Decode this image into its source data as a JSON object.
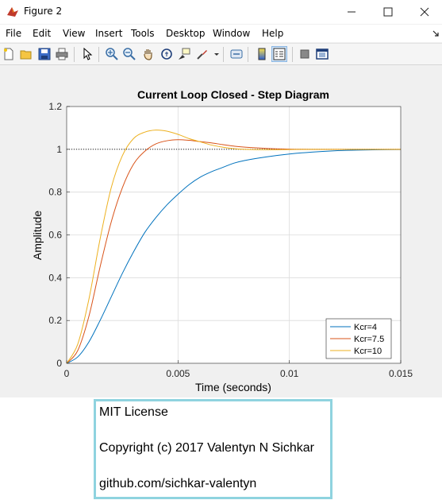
{
  "window": {
    "title": "Figure 2",
    "icon": "matlab-figure-icon",
    "controls": [
      "minimize-icon",
      "maximize-icon",
      "close-icon"
    ]
  },
  "menu": {
    "items": [
      "File",
      "Edit",
      "View",
      "Insert",
      "Tools",
      "Desktop",
      "Window",
      "Help"
    ]
  },
  "toolbar": {
    "buttons": [
      "new-figure-icon",
      "open-file-icon",
      "save-icon",
      "print-icon",
      "edit-plot-arrow-icon",
      "zoom-in-icon",
      "zoom-out-icon",
      "pan-hand-icon",
      "rotate-3d-icon",
      "data-cursor-icon",
      "brush-icon",
      "link-plot-icon",
      "insert-colorbar-icon",
      "insert-legend-icon",
      "hide-plot-tools-icon",
      "show-plot-tools-icon"
    ]
  },
  "chart_data": {
    "type": "line",
    "title": "Current Loop Closed - Step Diagram",
    "xlabel": "Time (seconds)",
    "ylabel": "Amplitude",
    "xlim": [
      0,
      0.015
    ],
    "ylim": [
      0,
      1.2
    ],
    "xticks": [
      "0",
      "0.005",
      "0.01",
      "0.015"
    ],
    "yticks": [
      "0",
      "0.2",
      "0.4",
      "0.6",
      "0.8",
      "1",
      "1.2"
    ],
    "grid": true,
    "reference_line": 1,
    "legend_position": "bottom-right",
    "x": [
      0,
      0.0005,
      0.001,
      0.0015,
      0.002,
      0.0025,
      0.003,
      0.0035,
      0.004,
      0.0045,
      0.005,
      0.0055,
      0.006,
      0.0065,
      0.007,
      0.0075,
      0.008,
      0.009,
      0.01,
      0.011,
      0.012,
      0.013,
      0.014,
      0.015
    ],
    "series": [
      {
        "name": "Kcr=4",
        "color": "#0072bd",
        "values": [
          0,
          0.03,
          0.1,
          0.2,
          0.31,
          0.42,
          0.52,
          0.61,
          0.68,
          0.74,
          0.79,
          0.835,
          0.87,
          0.895,
          0.915,
          0.935,
          0.948,
          0.965,
          0.978,
          0.987,
          0.993,
          0.996,
          0.998,
          0.999
        ]
      },
      {
        "name": "Kcr=7.5",
        "color": "#d95319",
        "values": [
          0,
          0.06,
          0.22,
          0.45,
          0.66,
          0.82,
          0.93,
          0.99,
          1.025,
          1.04,
          1.045,
          1.042,
          1.036,
          1.03,
          1.022,
          1.015,
          1.01,
          1.004,
          1.001,
          1.0,
          1.0,
          1.0,
          1.0,
          1.0
        ]
      },
      {
        "name": "Kcr=10",
        "color": "#edb120",
        "values": [
          0,
          0.09,
          0.3,
          0.58,
          0.82,
          0.97,
          1.05,
          1.08,
          1.09,
          1.085,
          1.07,
          1.05,
          1.035,
          1.02,
          1.01,
          1.003,
          1.0,
          0.998,
          0.999,
          1.0,
          1.0,
          1.0,
          1.0,
          1.0
        ]
      }
    ]
  },
  "license": {
    "line1": "MIT License",
    "line2": "Copyright (c) 2017 Valentyn N Sichkar",
    "line3": "github.com/sichkar-valentyn"
  }
}
